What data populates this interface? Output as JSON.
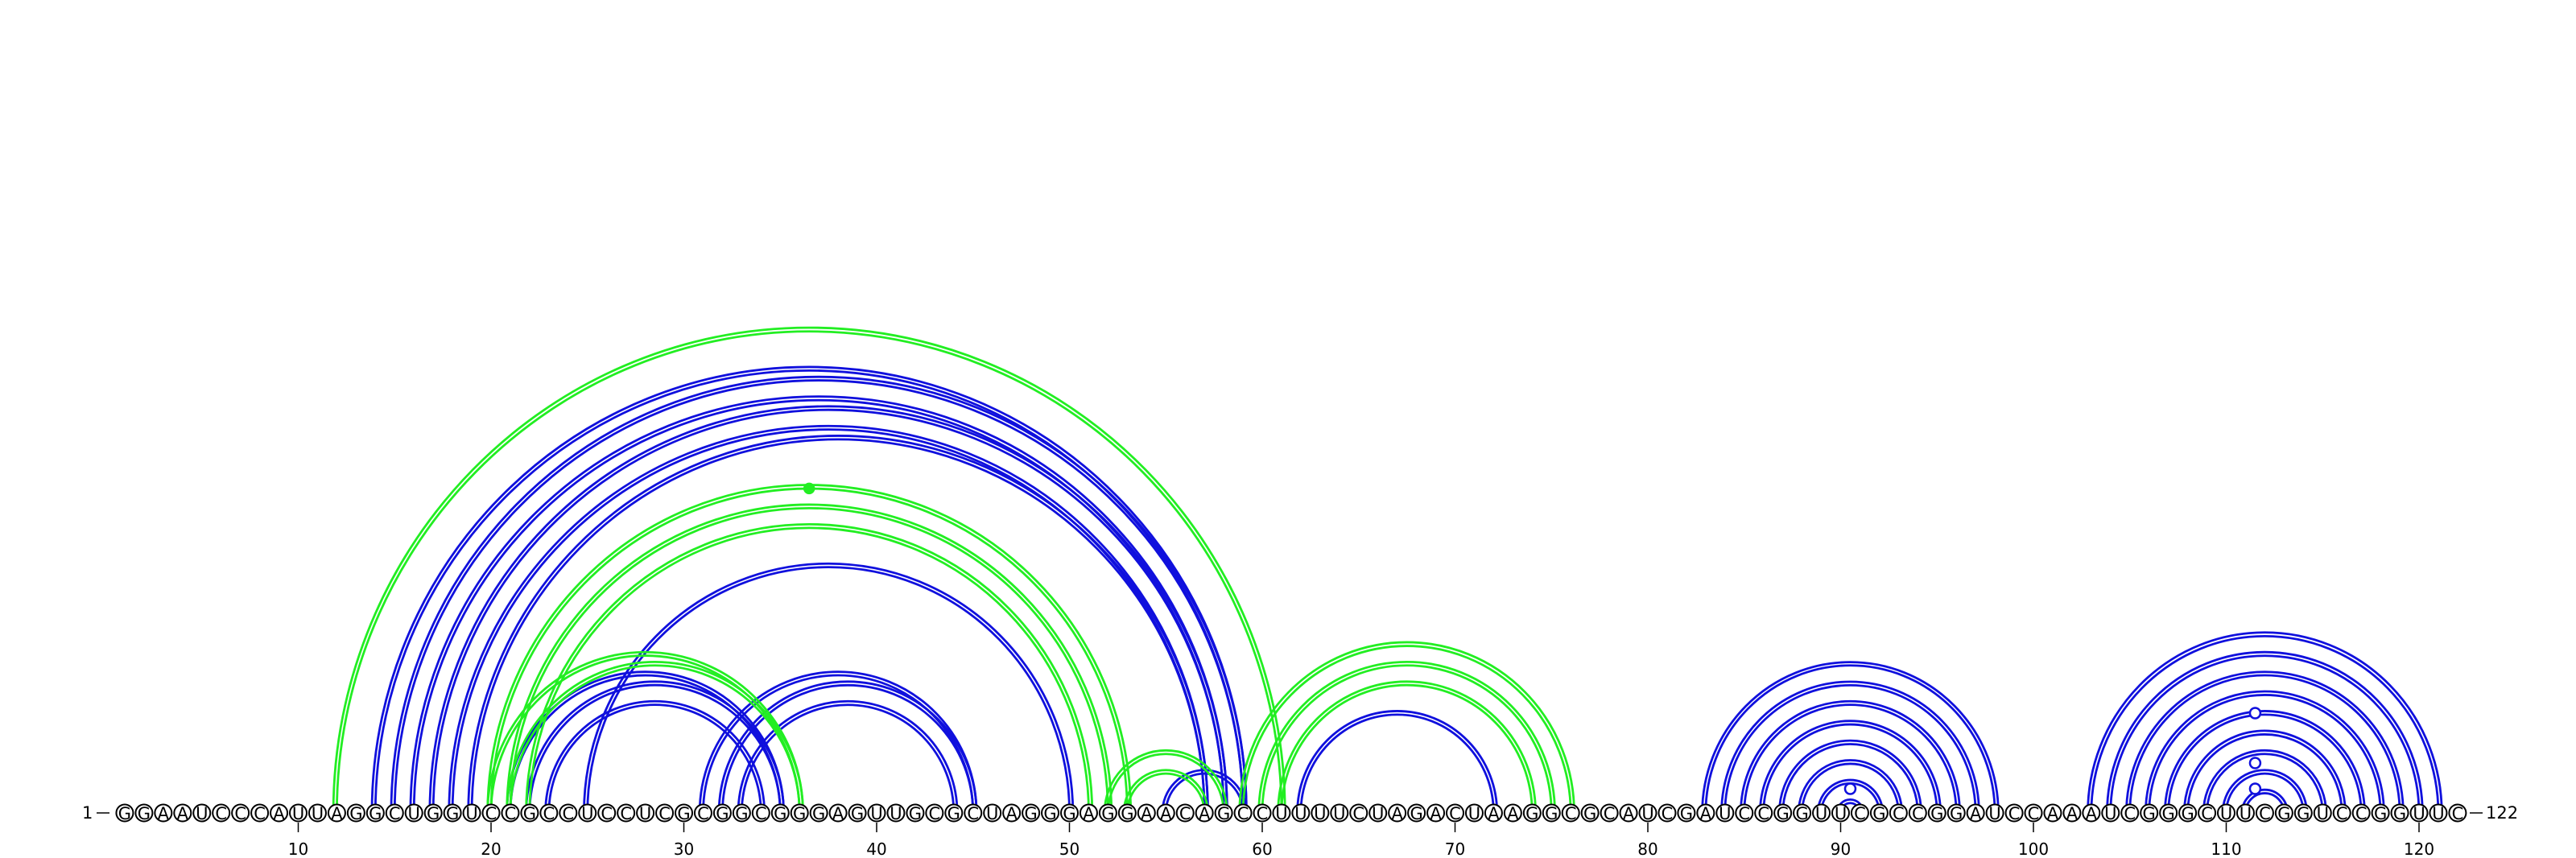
{
  "sequence": "GGAAUCCCAUUAGGCUGGUCCGCCUCCUCGCGGCGGGAGUUGCGCUAGGGAGGAACAGCCUUUUCUAGACUAAGGCGCAUCGAUCCGGUUCGCCGGAUCCAAAUCGGGCUUCGGUCCGGUUC",
  "start_label": "1",
  "end_label": "122",
  "ticks": [
    10,
    20,
    30,
    40,
    50,
    60,
    70,
    80,
    90,
    100,
    110,
    120
  ],
  "colors": {
    "blue": "#1010dd",
    "green": "#22ee22",
    "text": "#000000"
  },
  "pairs": {
    "blue": [
      [
        14,
        59
      ],
      [
        15,
        59
      ],
      [
        16,
        58
      ],
      [
        17,
        58
      ],
      [
        18,
        57
      ],
      [
        19,
        57
      ],
      [
        21,
        35
      ],
      [
        22,
        35
      ],
      [
        23,
        34
      ],
      [
        25,
        50
      ],
      [
        31,
        45
      ],
      [
        32,
        45
      ],
      [
        33,
        44
      ],
      [
        62,
        72
      ],
      [
        55,
        59
      ],
      [
        83,
        98
      ],
      [
        84,
        97
      ],
      [
        85,
        96
      ],
      [
        86,
        95
      ],
      [
        87,
        94
      ],
      [
        88,
        93
      ],
      [
        89,
        92
      ],
      [
        90,
        91
      ],
      [
        103,
        121
      ],
      [
        104,
        120
      ],
      [
        105,
        119
      ],
      [
        106,
        118
      ],
      [
        107,
        117
      ],
      [
        108,
        116
      ],
      [
        109,
        115
      ],
      [
        110,
        114
      ],
      [
        111,
        113
      ]
    ],
    "green": [
      [
        12,
        61
      ],
      [
        20,
        53
      ],
      [
        21,
        52
      ],
      [
        22,
        51
      ],
      [
        20,
        36
      ],
      [
        21,
        36
      ],
      [
        52,
        58
      ],
      [
        53,
        57
      ],
      [
        59,
        76
      ],
      [
        60,
        75
      ],
      [
        61,
        74
      ]
    ]
  },
  "markers": [
    {
      "i": 36.5,
      "j": 53,
      "type": "filled",
      "color": "green"
    },
    {
      "i": 111.5,
      "j": 111.5,
      "type": "open",
      "color": "blue",
      "offset": 0
    },
    {
      "i": 111.5,
      "j": 111.5,
      "type": "open",
      "color": "blue",
      "offset": 1
    },
    {
      "i": 111.5,
      "j": 111.5,
      "type": "open",
      "color": "blue",
      "offset": 2
    },
    {
      "i": 90.5,
      "j": 90.5,
      "type": "open",
      "color": "blue",
      "offset": 0
    }
  ]
}
